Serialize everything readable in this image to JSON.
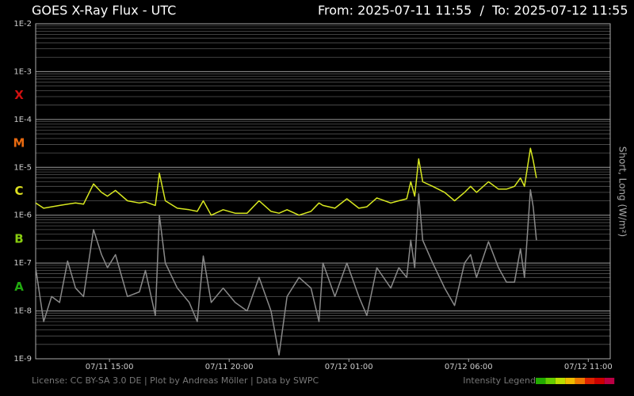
{
  "chart_data": {
    "type": "line",
    "title": "GOES X-Ray Flux - UTC",
    "subtitle": "From: 2025-07-11 11:55  /  To: 2025-07-12 11:55",
    "y_label": "Short, Long (W/m²)",
    "footer": "License: CC BY-SA 3.0 DE | Plot by Andreas Möller | Data by SWPC",
    "intensity_legend": {
      "label": "Intensity Legend",
      "colors": [
        "#22aa00",
        "#66cc00",
        "#bbdd00",
        "#eebb00",
        "#ee7700",
        "#dd2200",
        "#cc0000",
        "#bb0044"
      ]
    },
    "classes": [
      {
        "label": "X",
        "color": "#d01010"
      },
      {
        "label": "M",
        "color": "#e86a10"
      },
      {
        "label": "C",
        "color": "#dde020"
      },
      {
        "label": "B",
        "color": "#88cc10"
      },
      {
        "label": "A",
        "color": "#22aa10"
      }
    ],
    "log_scale": true,
    "grid": true,
    "minor_grid": true,
    "ylim": [
      1e-09,
      0.01
    ],
    "yticks": [
      {
        "value": 1e-09,
        "label": "1E-9"
      },
      {
        "value": 1e-08,
        "label": "1E-8"
      },
      {
        "value": 1e-07,
        "label": "1E-7"
      },
      {
        "value": 1e-06,
        "label": "1E-6"
      },
      {
        "value": 1e-05,
        "label": "1E-5"
      },
      {
        "value": 0.0001,
        "label": "1E-4"
      },
      {
        "value": 0.001,
        "label": "1E-3"
      },
      {
        "value": 0.01,
        "label": "1E-2"
      }
    ],
    "xlim": [
      "2025-07-11 11:55",
      "2025-07-12 11:55"
    ],
    "xticks": [
      {
        "value": "2025-07-11 15:00",
        "label": "07/11 15:00"
      },
      {
        "value": "2025-07-11 20:00",
        "label": "07/11 20:00"
      },
      {
        "value": "2025-07-12 01:00",
        "label": "07/12 01:00"
      },
      {
        "value": "2025-07-12 06:00",
        "label": "07/12 06:00"
      },
      {
        "value": "2025-07-12 11:00",
        "label": "07/12 11:00"
      }
    ],
    "x": [
      "2025-07-11 11:55",
      "2025-07-11 12:15",
      "2025-07-11 12:35",
      "2025-07-11 12:55",
      "2025-07-11 13:15",
      "2025-07-11 13:35",
      "2025-07-11 13:55",
      "2025-07-11 14:20",
      "2025-07-11 14:40",
      "2025-07-11 14:55",
      "2025-07-11 15:15",
      "2025-07-11 15:45",
      "2025-07-11 16:15",
      "2025-07-11 16:30",
      "2025-07-11 16:55",
      "2025-07-11 17:05",
      "2025-07-11 17:20",
      "2025-07-11 17:50",
      "2025-07-11 18:20",
      "2025-07-11 18:40",
      "2025-07-11 18:55",
      "2025-07-11 19:15",
      "2025-07-11 19:45",
      "2025-07-11 20:15",
      "2025-07-11 20:45",
      "2025-07-11 21:15",
      "2025-07-11 21:45",
      "2025-07-11 22:05",
      "2025-07-11 22:25",
      "2025-07-11 22:55",
      "2025-07-11 23:25",
      "2025-07-11 23:45",
      "2025-07-11 23:55",
      "2025-07-12 00:25",
      "2025-07-12 00:55",
      "2025-07-12 01:25",
      "2025-07-12 01:45",
      "2025-07-12 02:10",
      "2025-07-12 02:45",
      "2025-07-12 03:05",
      "2025-07-12 03:25",
      "2025-07-12 03:35",
      "2025-07-12 03:45",
      "2025-07-12 03:55",
      "2025-07-12 04:05",
      "2025-07-12 04:30",
      "2025-07-12 05:00",
      "2025-07-12 05:25",
      "2025-07-12 05:50",
      "2025-07-12 06:05",
      "2025-07-12 06:20",
      "2025-07-12 06:50",
      "2025-07-12 07:15",
      "2025-07-12 07:35",
      "2025-07-12 07:55",
      "2025-07-12 08:10",
      "2025-07-12 08:20",
      "2025-07-12 08:35",
      "2025-07-12 08:42",
      "2025-07-12 08:50"
    ],
    "series": [
      {
        "name": "Long",
        "color": "#d8e820",
        "values": [
          1.8e-06,
          1.4e-06,
          1.5e-06,
          1.6e-06,
          1.7e-06,
          1.8e-06,
          1.7e-06,
          4.5e-06,
          3e-06,
          2.5e-06,
          3.3e-06,
          2e-06,
          1.8e-06,
          1.9e-06,
          1.6e-06,
          7.5e-06,
          2e-06,
          1.4e-06,
          1.3e-06,
          1.2e-06,
          2e-06,
          1e-06,
          1.3e-06,
          1.1e-06,
          1.1e-06,
          2e-06,
          1.2e-06,
          1.1e-06,
          1.3e-06,
          1e-06,
          1.2e-06,
          1.8e-06,
          1.6e-06,
          1.4e-06,
          2.2e-06,
          1.4e-06,
          1.5e-06,
          2.3e-06,
          1.8e-06,
          2e-06,
          2.2e-06,
          5e-06,
          2.5e-06,
          1.5e-05,
          5e-06,
          4e-06,
          3e-06,
          2e-06,
          3e-06,
          4e-06,
          3e-06,
          5e-06,
          3.5e-06,
          3.5e-06,
          4e-06,
          6e-06,
          4e-06,
          2.5e-05,
          1.4e-05,
          6e-06
        ]
      },
      {
        "name": "Short",
        "color": "#8a8a8a",
        "values": [
          8e-08,
          6e-09,
          2e-08,
          1.5e-08,
          1.1e-07,
          3e-08,
          2e-08,
          5e-07,
          1.5e-07,
          8e-08,
          1.5e-07,
          2e-08,
          2.5e-08,
          7e-08,
          8e-09,
          1e-06,
          1e-07,
          3e-08,
          1.5e-08,
          6e-09,
          1.4e-07,
          1.5e-08,
          3e-08,
          1.5e-08,
          1e-08,
          5e-08,
          1e-08,
          1.2e-09,
          2e-08,
          5e-08,
          3e-08,
          6e-09,
          1e-07,
          2e-08,
          1e-07,
          2e-08,
          8e-09,
          8e-08,
          3e-08,
          8e-08,
          5e-08,
          3e-07,
          8e-08,
          2.8e-06,
          3e-07,
          1e-07,
          3e-08,
          1.3e-08,
          1e-07,
          1.5e-07,
          5e-08,
          2.8e-07,
          8e-08,
          4e-08,
          4e-08,
          2e-07,
          5e-08,
          3.4e-06,
          1.5e-06,
          3e-07
        ]
      }
    ]
  }
}
